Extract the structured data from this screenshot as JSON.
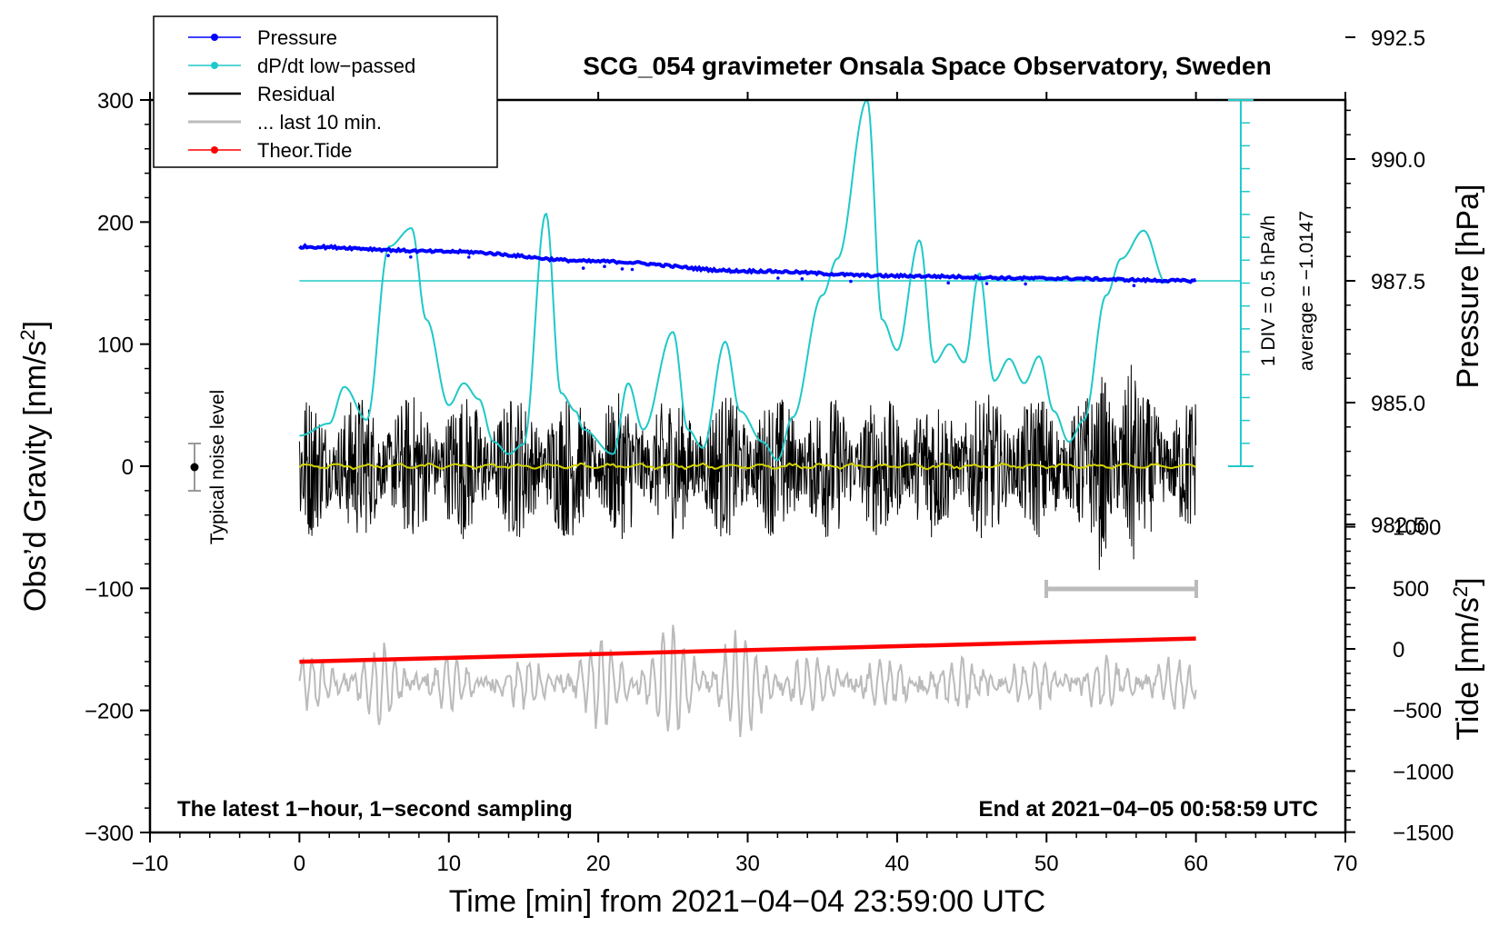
{
  "chart_data": {
    "type": "line",
    "title": "SCG_054 gravimeter Onsala Space Observatory, Sweden",
    "xlabel": "Time [min] from 2021−04−04 23:59:00 UTC",
    "ylabel_left_main": "Obs’d Gravity [nm/s",
    "ylabel_left_sup": "2",
    "ylabel_left_end": "]",
    "ylabel_right_pressure": "Pressure [hPa]",
    "ylabel_right_tide_main": "Tide [nm/s",
    "ylabel_right_tide_sup": "2",
    "ylabel_right_tide_end": "]",
    "xlim": [
      -10,
      70
    ],
    "ylim_gravity": [
      -300,
      300
    ],
    "x_ticks": [
      "−10",
      "0",
      "10",
      "20",
      "30",
      "40",
      "50",
      "60",
      "70"
    ],
    "y_ticks_gravity": [
      "300",
      "200",
      "100",
      "0",
      "−100",
      "−200",
      "−300"
    ],
    "pressure_ticks": [
      "992.5",
      "990.0",
      "987.5",
      "985.0",
      "982.5"
    ],
    "tide_ticks": [
      "1000",
      "500",
      "0",
      "−500",
      "−1000",
      "−1500"
    ],
    "legend": {
      "position": "top-left",
      "entries": [
        "Pressure",
        "dP/dt low−passed",
        "Residual",
        "... last 10 min.",
        "Theor.Tide"
      ]
    },
    "annotations": {
      "scale_div": "1 DIV = 0.5 hPa/h",
      "average": "average = −1.0147",
      "noise": "Typical noise level",
      "bottom_left": "The latest 1−hour, 1−second sampling",
      "bottom_right": "End at 2021−04−05 00:58:59 UTC"
    },
    "series": [
      {
        "name": "Pressure",
        "color": "#0000ff",
        "unit": "hPa",
        "x": [
          0,
          10,
          20,
          30,
          40,
          50,
          60
        ],
        "values": [
          988.2,
          988.1,
          987.9,
          987.7,
          987.6,
          987.55,
          987.5
        ]
      },
      {
        "name": "dP/dt low−passed",
        "color": "#00c0c0",
        "unit": "gravity-axis",
        "x": [
          0,
          2,
          3,
          4.5,
          6,
          7.5,
          8.5,
          10,
          11,
          12,
          13,
          14,
          15,
          16.5,
          17.5,
          18.5,
          19,
          21,
          22,
          23,
          25,
          26,
          27,
          28.5,
          29.5,
          31,
          32,
          33,
          35,
          36,
          38,
          39,
          40,
          41.5,
          42.5,
          43.5,
          44.5,
          45.5,
          46.5,
          47.5,
          48.5,
          49.5,
          50.5,
          51.5,
          52.5,
          54,
          55,
          56.5,
          58
        ],
        "values": [
          25,
          35,
          65,
          38,
          180,
          195,
          120,
          50,
          68,
          55,
          20,
          10,
          18,
          207,
          60,
          45,
          30,
          10,
          68,
          30,
          110,
          30,
          15,
          102,
          45,
          20,
          5,
          40,
          140,
          170,
          300,
          120,
          95,
          185,
          85,
          100,
          85,
          158,
          70,
          88,
          68,
          90,
          45,
          20,
          38,
          140,
          170,
          193,
          150
        ]
      },
      {
        "name": "Residual",
        "color": "#000000",
        "unit": "nm/s2",
        "x": [
          0,
          60
        ],
        "values": [
          0,
          0
        ],
        "noise_amplitude": 60
      },
      {
        "name": "... last 10 min.",
        "color": "#bbbbbb",
        "unit": "nm/s2 (offset)",
        "x": [
          50,
          60
        ],
        "values": [
          -100,
          -100
        ]
      },
      {
        "name": "Theor.Tide",
        "color": "#ff0000",
        "unit": "nm/s2",
        "x": [
          0,
          60
        ],
        "values": [
          -105,
          85
        ]
      }
    ]
  }
}
